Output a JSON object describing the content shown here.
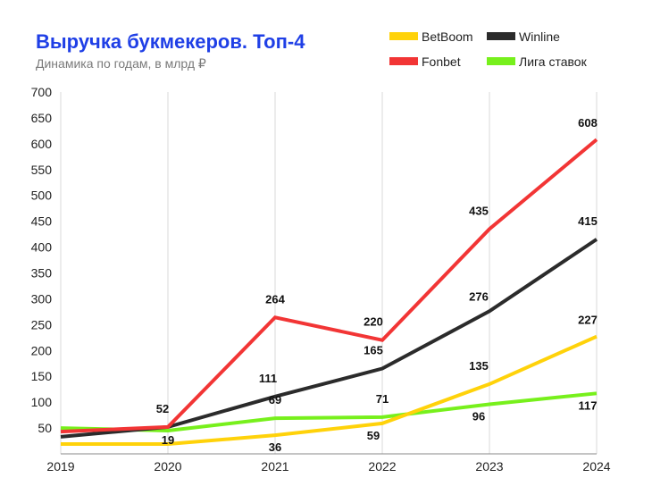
{
  "chart_data": {
    "type": "line",
    "title": "Выручка букмекеров. Топ-4",
    "subtitle": "Динамика по годам, в млрд ₽",
    "categories": [
      "2019",
      "2020",
      "2021",
      "2022",
      "2023",
      "2024"
    ],
    "yticks": [
      50,
      100,
      150,
      200,
      250,
      300,
      350,
      400,
      450,
      500,
      550,
      600,
      650,
      700
    ],
    "ylim": [
      0,
      700
    ],
    "grid": "vertical",
    "legend": "top-right",
    "series": [
      {
        "name": "BetBoom",
        "color": "#ffd20a",
        "values": [
          19,
          19,
          36,
          59,
          135,
          227
        ],
        "labels": [
          "",
          "19",
          "36",
          "59",
          "135",
          "227"
        ]
      },
      {
        "name": "Winline",
        "color": "#2b2b2b",
        "values": [
          33,
          52,
          111,
          165,
          276,
          415
        ],
        "labels": [
          "",
          "",
          "111",
          "165",
          "276",
          "415"
        ]
      },
      {
        "name": "Fonbet",
        "color": "#f23535",
        "values": [
          43,
          52,
          264,
          220,
          435,
          608
        ],
        "labels": [
          "",
          "52",
          "264",
          "220",
          "435",
          "608"
        ]
      },
      {
        "name": "Лига ставок",
        "color": "#77f01c",
        "values": [
          50,
          45,
          69,
          71,
          96,
          117
        ],
        "labels": [
          "",
          "",
          "69",
          "71",
          "96",
          "117"
        ]
      }
    ]
  }
}
